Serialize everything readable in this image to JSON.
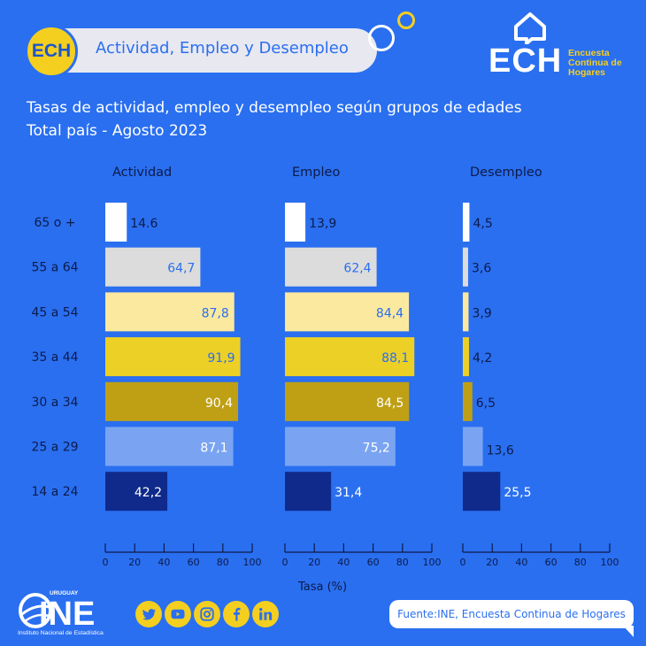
{
  "header": {
    "badge": "ECH",
    "title": "Actividad, Empleo y Desempleo"
  },
  "brand": {
    "logo_text": "ECH",
    "sub_line1": "Encuesta",
    "sub_line2": "Continua de",
    "sub_line3": "Hogares"
  },
  "subtitle": {
    "line1": "Tasas de actividad, empleo y desempleo según grupos de edades",
    "line2": "Total país - Agosto 2023"
  },
  "colors": {
    "background": "#2a6ff0",
    "age_groups": [
      "#ffffff",
      "#dcdcdc",
      "#fbe9a0",
      "#ecd025",
      "#bfa015",
      "#7aa4f2",
      "#0f2a8a"
    ],
    "label_dark": "#2a6ff0",
    "accent_yellow": "#f4cf20"
  },
  "chart_data": {
    "type": "bar",
    "orientation": "horizontal",
    "categories": [
      "65 o +",
      "55 a 64",
      "45 a 54",
      "35 a 44",
      "30 a 34",
      "25 a 29",
      "14 a 24"
    ],
    "series": [
      {
        "name": "Actividad",
        "values": [
          14.6,
          64.7,
          87.8,
          91.9,
          90.4,
          87.1,
          42.2
        ],
        "labels": [
          "14.6",
          "64,7",
          "87,8",
          "91,9",
          "90,4",
          "87,1",
          "42,2"
        ]
      },
      {
        "name": "Empleo",
        "values": [
          13.9,
          62.4,
          84.4,
          88.1,
          84.5,
          75.2,
          31.4
        ],
        "labels": [
          "13,9",
          "62,4",
          "84,4",
          "88,1",
          "84,5",
          "75,2",
          "31,4"
        ]
      },
      {
        "name": "Desempleo",
        "values": [
          4.5,
          3.6,
          3.9,
          4.2,
          6.5,
          13.6,
          25.5
        ],
        "labels": [
          "4,5",
          "3,6",
          "3,9",
          "4,2",
          "6,5",
          "13,6",
          "25,5"
        ]
      }
    ],
    "xlim": [
      0,
      100
    ],
    "xticks": [
      "0",
      "20",
      "40",
      "60",
      "80",
      "100"
    ],
    "xlabel": "Tasa (%)"
  },
  "social_icons": [
    "twitter-icon",
    "youtube-icon",
    "instagram-icon",
    "facebook-icon",
    "linkedin-icon"
  ],
  "footer": {
    "source": "Fuente:INE, Encuesta Continua de Hogares",
    "ine_logo_text": "INE",
    "ine_country": "URUGUAY",
    "ine_name": "Instituto Nacional de Estadística"
  }
}
